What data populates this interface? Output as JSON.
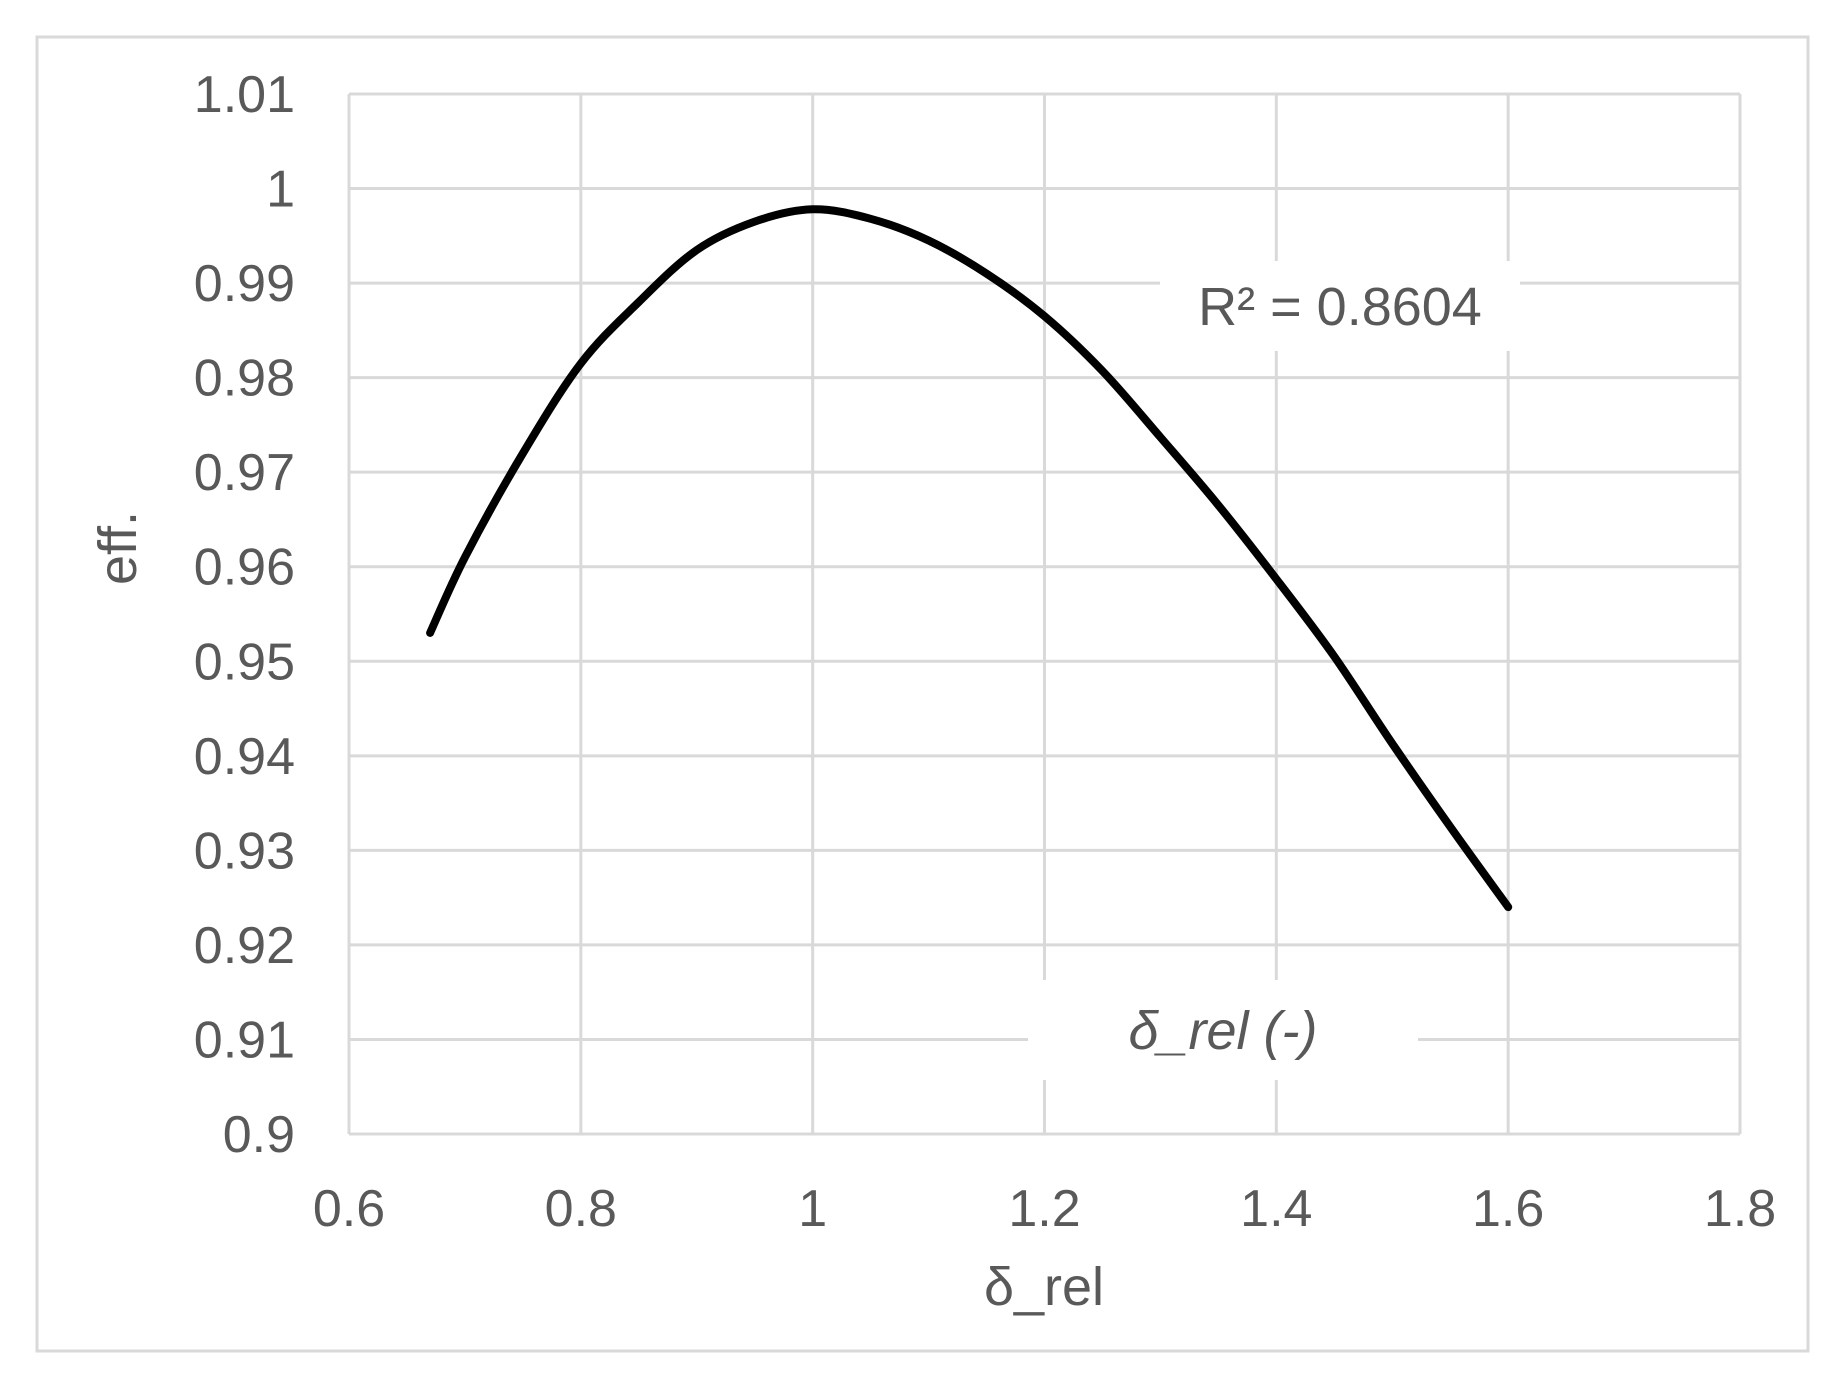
{
  "chart_data": {
    "type": "line",
    "title": "",
    "xlabel": "δ_rel",
    "ylabel": "eff.",
    "xlim": [
      0.6,
      1.8
    ],
    "ylim": [
      0.9,
      1.01
    ],
    "xticks": [
      "0.6",
      "0.8",
      "1",
      "1.2",
      "1.4",
      "1.6",
      "1.8"
    ],
    "yticks": [
      "0.9",
      "0.91",
      "0.92",
      "0.93",
      "0.94",
      "0.95",
      "0.96",
      "0.97",
      "0.98",
      "0.99",
      "1",
      "1.01"
    ],
    "grid": true,
    "series": [
      {
        "color": "#000000",
        "x": [
          0.67,
          0.7,
          0.75,
          0.8,
          0.85,
          0.9,
          0.95,
          1.0,
          1.05,
          1.1,
          1.15,
          1.2,
          1.25,
          1.3,
          1.35,
          1.4,
          1.45,
          1.5,
          1.55,
          1.6
        ],
        "y": [
          0.953,
          0.961,
          0.972,
          0.9815,
          0.988,
          0.9935,
          0.9965,
          0.9978,
          0.9968,
          0.9945,
          0.991,
          0.9865,
          0.9807,
          0.9737,
          0.9665,
          0.9587,
          0.9505,
          0.9413,
          0.9325,
          0.924
        ]
      }
    ],
    "annotations": [
      {
        "text": "R² = 0.8604"
      },
      {
        "text": "δ_rel (-)"
      }
    ]
  }
}
